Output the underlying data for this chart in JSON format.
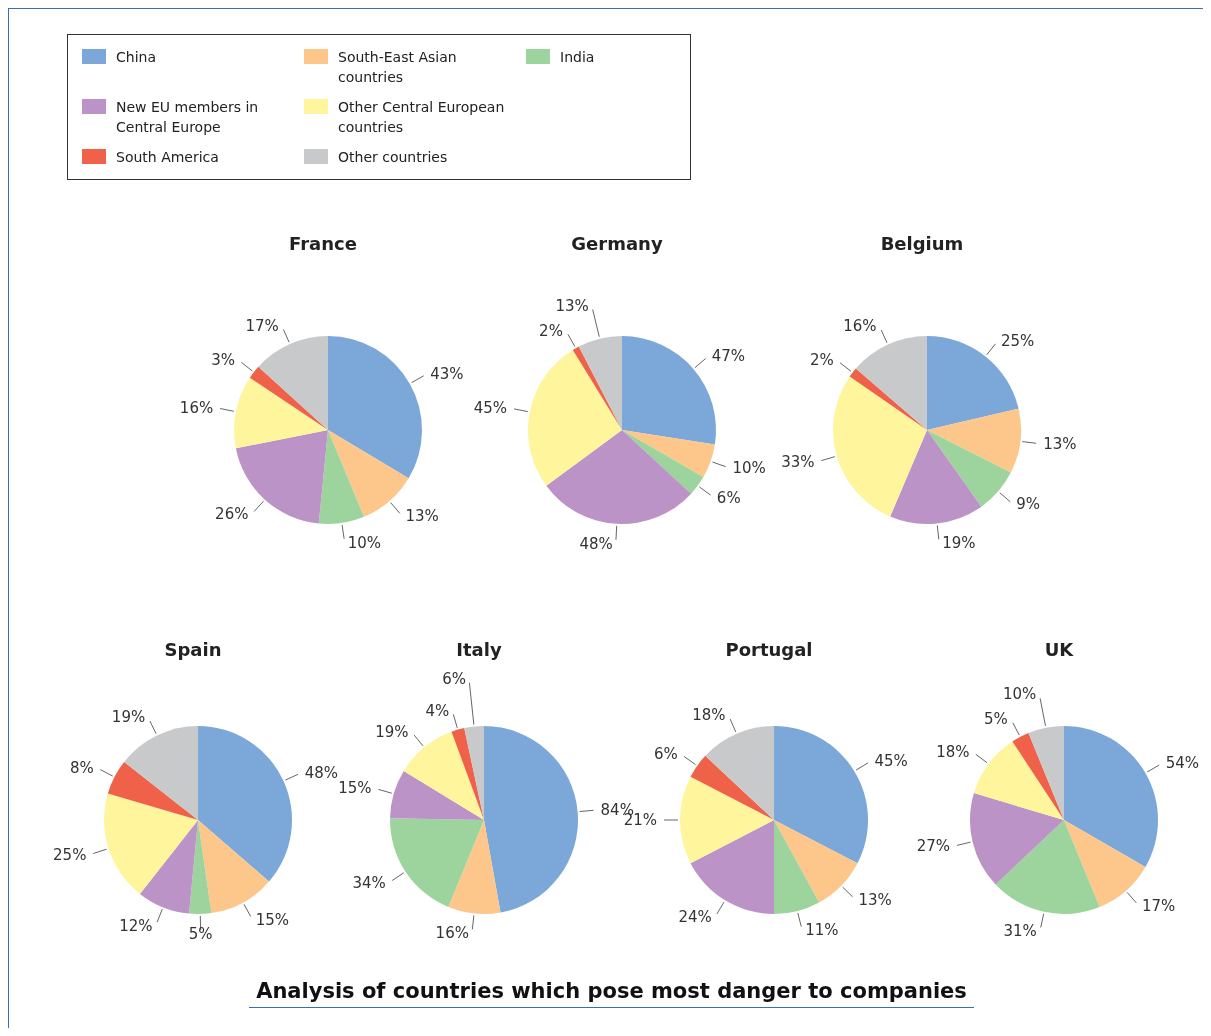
{
  "chart_data": [
    {
      "type": "pie",
      "title": "France",
      "legend": "top",
      "categories": [
        "China",
        "South-East Asian countries",
        "India",
        "New EU members in Central Europe",
        "Other Central European countries",
        "South America",
        "Other countries"
      ],
      "values": [
        43,
        13,
        10,
        26,
        16,
        3,
        17
      ],
      "value_labels": [
        "43%",
        "13%",
        "10%",
        "26%",
        "16%",
        "3%",
        "17%"
      ],
      "colors": [
        "#7ba7d9",
        "#fdc68a",
        "#9dd49d",
        "#bb93c6",
        "#fff59d",
        "#ef6149",
        "#c8c9cb"
      ]
    },
    {
      "type": "pie",
      "title": "Germany",
      "categories": [
        null,
        null,
        null,
        null,
        null,
        null,
        null
      ],
      "values": [
        47,
        10,
        6,
        48,
        45,
        2,
        13
      ],
      "value_labels": [
        "47%",
        "10%",
        "6%",
        "48%",
        "45%",
        "2%",
        "13%"
      ],
      "colors": [
        "#7ba7d9",
        "#fdc68a",
        "#9dd49d",
        "#bb93c6",
        "#fff59d",
        "#ef6149",
        "#c8c9cb"
      ]
    },
    {
      "type": "pie",
      "title": "Belgium",
      "categories": [
        null,
        null,
        null,
        null,
        null,
        null,
        null
      ],
      "values": [
        25,
        13,
        9,
        19,
        33,
        2,
        16
      ],
      "value_labels": [
        "25%",
        "13%",
        "9%",
        "19%",
        "33%",
        "2%",
        "16%"
      ],
      "colors": [
        "#7ba7d9",
        "#fdc68a",
        "#9dd49d",
        "#bb93c6",
        "#fff59d",
        "#ef6149",
        "#c8c9cb"
      ]
    },
    {
      "type": "pie",
      "title": "Spain",
      "categories": [
        null,
        null,
        null,
        null,
        null,
        null,
        null
      ],
      "values": [
        48,
        15,
        5,
        12,
        25,
        8,
        19
      ],
      "value_labels": [
        "48%",
        "15%",
        "5%",
        "12%",
        "25%",
        "8%",
        "19%"
      ],
      "colors": [
        "#7ba7d9",
        "#fdc68a",
        "#9dd49d",
        "#bb93c6",
        "#fff59d",
        "#ef6149",
        "#c8c9cb"
      ]
    },
    {
      "type": "pie",
      "title": "Italy",
      "categories": [
        null,
        null,
        null,
        null,
        null,
        null,
        null
      ],
      "values": [
        84,
        16,
        34,
        15,
        19,
        4,
        6
      ],
      "value_labels": [
        "84%",
        "16%",
        "34%",
        "15%",
        "19%",
        "4%",
        "6%"
      ],
      "colors": [
        "#7ba7d9",
        "#fdc68a",
        "#9dd49d",
        "#bb93c6",
        "#fff59d",
        "#ef6149",
        "#c8c9cb"
      ]
    },
    {
      "type": "pie",
      "title": "Portugal",
      "categories": [
        null,
        null,
        null,
        null,
        null,
        null,
        null
      ],
      "values": [
        45,
        13,
        11,
        24,
        21,
        6,
        18
      ],
      "value_labels": [
        "45%",
        "13%",
        "11%",
        "24%",
        "21%",
        "6%",
        "18%"
      ],
      "colors": [
        "#7ba7d9",
        "#fdc68a",
        "#9dd49d",
        "#bb93c6",
        "#fff59d",
        "#ef6149",
        "#c8c9cb"
      ]
    },
    {
      "type": "pie",
      "title": "UK",
      "annotations": [
        "Analysis of countries which pose most danger to companies"
      ],
      "categories": [
        null,
        null,
        null,
        null,
        null,
        null,
        null
      ],
      "values": [
        54,
        17,
        31,
        27,
        18,
        5,
        10
      ],
      "value_labels": [
        "54%",
        "17%",
        "31%",
        "27%",
        "18%",
        "5%",
        "10%"
      ],
      "colors": [
        "#7ba7d9",
        "#fdc68a",
        "#9dd49d",
        "#bb93c6",
        "#fff59d",
        "#ef6149",
        "#c8c9cb"
      ]
    }
  ]
}
